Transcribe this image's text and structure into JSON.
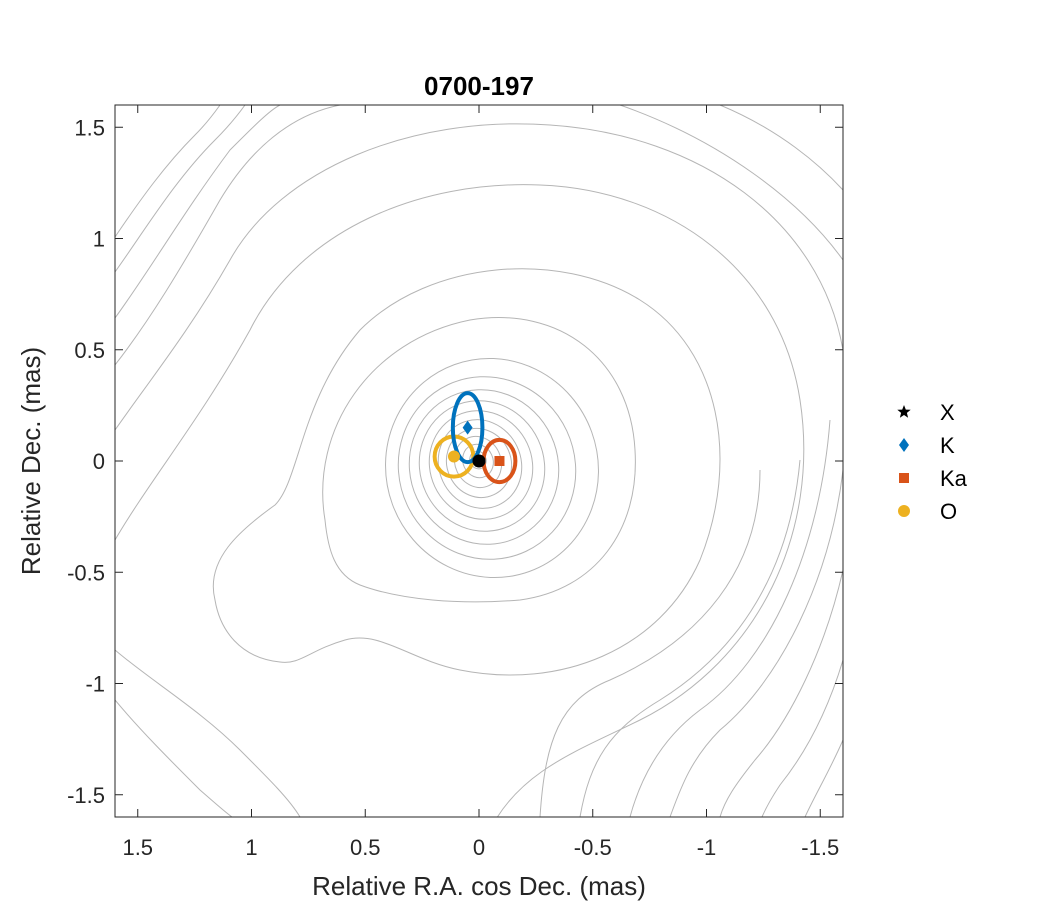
{
  "chart_data": {
    "type": "scatter",
    "title": "0700-197",
    "xlabel": "Relative R.A. cos Dec. (mas)",
    "ylabel": "Relative Dec. (mas)",
    "xlim": [
      1.6,
      -1.6
    ],
    "ylim": [
      -1.6,
      1.6
    ],
    "x_reversed": true,
    "xticks": [
      1.5,
      1,
      0.5,
      0,
      -0.5,
      -1,
      -1.5
    ],
    "xtick_labels": [
      "1.5",
      "1",
      "0.5",
      "0",
      "-0.5",
      "-1",
      "-1.5"
    ],
    "yticks": [
      -1.5,
      -1,
      -0.5,
      0,
      0.5,
      1,
      1.5
    ],
    "ytick_labels": [
      "-1.5",
      "-1",
      "-0.5",
      "0",
      "0.5",
      "1",
      "1.5"
    ],
    "grid": false,
    "legend_position": "outside-right",
    "series": [
      {
        "name": "X",
        "marker": "star",
        "color": "#000000",
        "x": 0.0,
        "y": 0.0,
        "ellipse": {
          "rx": 0.02,
          "ry": 0.02
        }
      },
      {
        "name": "K",
        "marker": "diamond",
        "color": "#0072BD",
        "x": 0.05,
        "y": 0.15,
        "ellipse": {
          "rx": 0.065,
          "ry": 0.155
        }
      },
      {
        "name": "Ka",
        "marker": "square",
        "color": "#D95319",
        "x": -0.09,
        "y": 0.0,
        "ellipse": {
          "rx": 0.07,
          "ry": 0.095
        }
      },
      {
        "name": "O",
        "marker": "circle",
        "color": "#EDB120",
        "x": 0.11,
        "y": 0.02,
        "ellipse": {
          "rx": 0.085,
          "ry": 0.09
        }
      }
    ]
  }
}
